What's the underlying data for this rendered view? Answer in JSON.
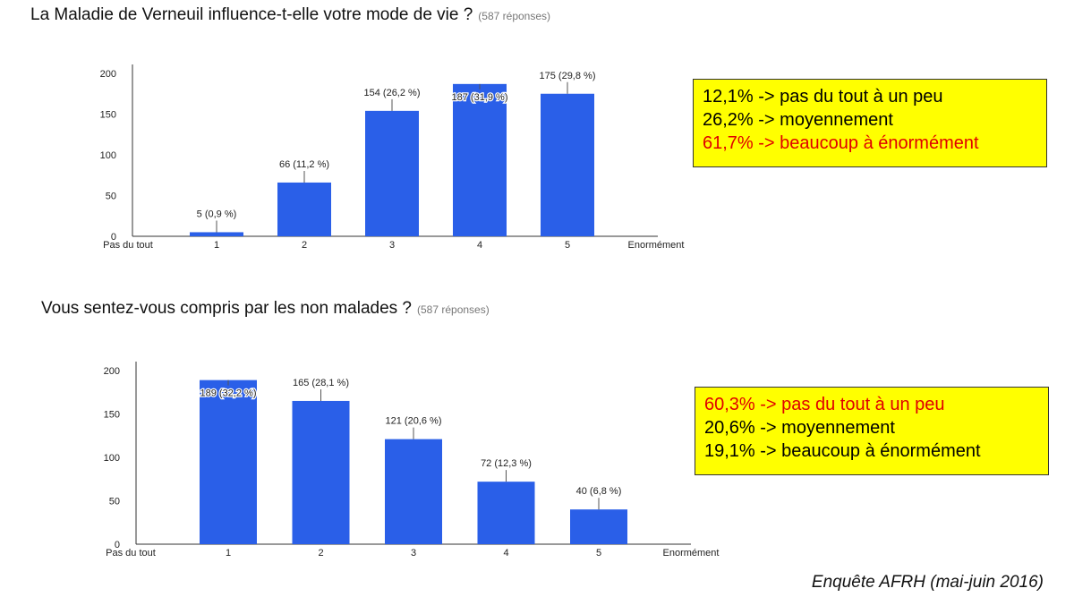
{
  "chart_data": [
    {
      "type": "bar",
      "title": "La Maladie de Verneuil influence-t-elle votre mode de vie ?",
      "subtitle": "(587 réponses)",
      "categories": [
        "1",
        "2",
        "3",
        "4",
        "5"
      ],
      "values": [
        5,
        66,
        154,
        187,
        175
      ],
      "data_labels": [
        "5 (0,9 %)",
        "66 (11,2 %)",
        "154 (26,2 %)",
        "187 (31,9 %)",
        "175 (29,8 %)"
      ],
      "yticks": [
        "0",
        "50",
        "100",
        "150",
        "200"
      ],
      "ylim": [
        0,
        200
      ],
      "x_min_label": "Pas du tout",
      "x_max_label": "Enormément",
      "color": "#2a5fe8",
      "grid": false
    },
    {
      "type": "bar",
      "title": "Vous sentez-vous compris par les non malades ?",
      "subtitle": "(587 réponses)",
      "categories": [
        "1",
        "2",
        "3",
        "4",
        "5"
      ],
      "values": [
        189,
        165,
        121,
        72,
        40
      ],
      "data_labels": [
        "189 (32,2 %)",
        "165 (28,1 %)",
        "121 (20,6 %)",
        "72 (12,3 %)",
        "40 (6,8 %)"
      ],
      "yticks": [
        "0",
        "50",
        "100",
        "150",
        "200"
      ],
      "ylim": [
        0,
        200
      ],
      "x_min_label": "Pas du tout",
      "x_max_label": "Enormément",
      "color": "#2a5fe8",
      "grid": false
    }
  ],
  "summary1": [
    {
      "text": "12,1% -> pas du tout à un peu",
      "highlight": false
    },
    {
      "text": "26,2% -> moyennement",
      "highlight": false
    },
    {
      "text": "61,7% -> beaucoup à énormément",
      "highlight": true
    }
  ],
  "summary2": [
    {
      "text": "60,3% -> pas du tout à un peu",
      "highlight": true
    },
    {
      "text": "20,6% -> moyennement",
      "highlight": false
    },
    {
      "text": "19,1% -> beaucoup à énormément",
      "highlight": false
    }
  ],
  "footer": "Enquête AFRH (mai-juin 2016)"
}
